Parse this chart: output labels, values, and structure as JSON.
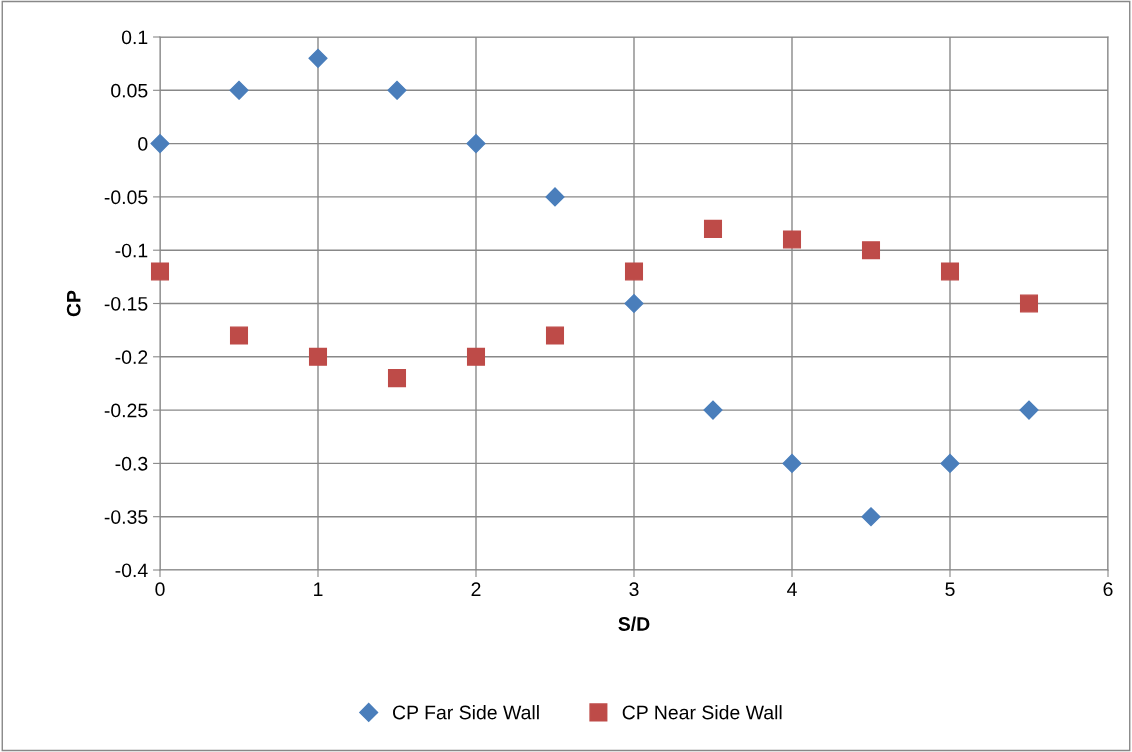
{
  "chart_data": {
    "type": "scatter",
    "xlabel": "S/D",
    "ylabel": "CP",
    "x": [
      0,
      0.5,
      1,
      1.5,
      2,
      2.5,
      3,
      3.5,
      4,
      4.5,
      5,
      5.5
    ],
    "series": [
      {
        "name": "CP Far Side Wall",
        "color": "#4a7ebb",
        "marker": "diamond",
        "values": [
          0,
          0.05,
          0.08,
          0.05,
          0,
          -0.05,
          -0.15,
          -0.25,
          -0.3,
          -0.35,
          -0.3,
          -0.25
        ]
      },
      {
        "name": "CP Near Side Wall",
        "color": "#be4b48",
        "marker": "square",
        "values": [
          -0.12,
          -0.18,
          -0.2,
          -0.22,
          -0.2,
          -0.18,
          -0.12,
          -0.08,
          -0.09,
          -0.1,
          -0.12,
          -0.15
        ]
      }
    ],
    "xlim": [
      0,
      6
    ],
    "xticks": [
      0,
      1,
      2,
      3,
      4,
      5,
      6
    ],
    "ylim": [
      -0.4,
      0.1
    ],
    "yticks": [
      -0.4,
      -0.35,
      -0.3,
      -0.25,
      -0.2,
      -0.15,
      -0.1,
      -0.05,
      0,
      0.05,
      0.1
    ],
    "grid": true,
    "legend": "bottom"
  }
}
